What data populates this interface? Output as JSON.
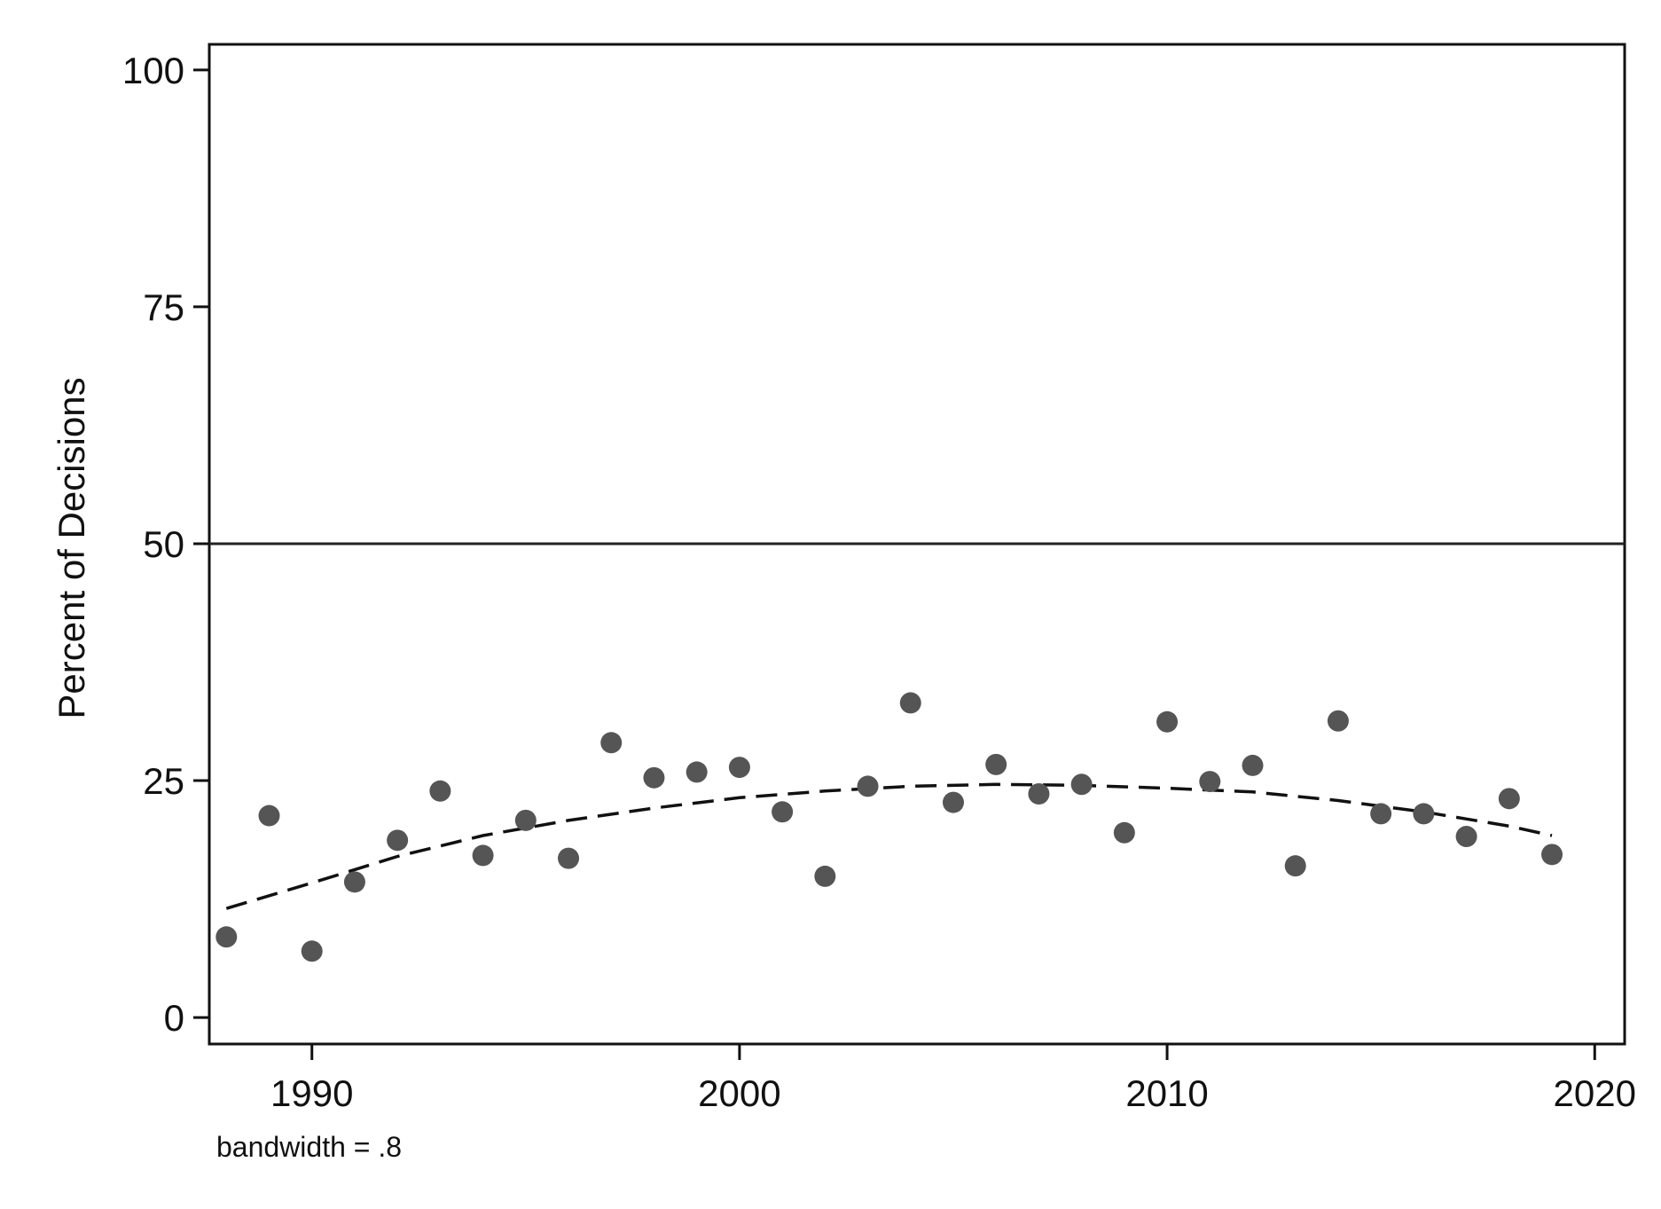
{
  "chart_data": {
    "type": "scatter",
    "title": "",
    "xlabel": "",
    "ylabel": "Percent of Decisions",
    "note": "bandwidth = .8",
    "xlim": [
      1987.6,
      2020.7
    ],
    "ylim": [
      -2.8,
      102.7
    ],
    "x_ticks": [
      1990,
      2000,
      2010,
      2020
    ],
    "x_tick_labels": [
      "1990",
      "2000",
      "2010",
      "2020"
    ],
    "y_ticks": [
      0,
      25,
      50,
      75,
      100
    ],
    "y_tick_labels": [
      "0",
      "25",
      "50",
      "75",
      "100"
    ],
    "grid": false,
    "reference_line": {
      "y": 50
    },
    "colors": {
      "points": "#555555",
      "fit": "#111111",
      "axis": "#111111"
    },
    "series": [
      {
        "type": "scatter",
        "x": [
          1988,
          1989,
          1990,
          1991,
          1992,
          1993,
          1994,
          1995,
          1996,
          1997,
          1998,
          1999,
          2000,
          2001,
          2002,
          2003,
          2004,
          2005,
          2006,
          2007,
          2008,
          2009,
          2010,
          2011,
          2012,
          2013,
          2014,
          2015,
          2016,
          2017,
          2018,
          2019
        ],
        "y": [
          8.5,
          21.3,
          7.0,
          14.3,
          18.7,
          23.9,
          17.1,
          20.8,
          16.8,
          29.0,
          25.3,
          25.9,
          26.4,
          21.7,
          14.9,
          24.4,
          33.2,
          22.7,
          26.7,
          23.6,
          24.6,
          19.5,
          31.2,
          24.9,
          26.6,
          16.0,
          31.3,
          21.5,
          21.5,
          19.1,
          23.1,
          17.2
        ]
      },
      {
        "type": "lowess",
        "x": [
          1988,
          1990,
          1992,
          1994,
          1996,
          1998,
          2000,
          2002,
          2004,
          2006,
          2008,
          2010,
          2012,
          2014,
          2016,
          2018,
          2019
        ],
        "y": [
          11.5,
          14.2,
          17.0,
          19.2,
          20.8,
          22.1,
          23.2,
          23.9,
          24.4,
          24.6,
          24.5,
          24.2,
          23.8,
          22.9,
          21.7,
          20.2,
          19.2
        ]
      }
    ]
  }
}
